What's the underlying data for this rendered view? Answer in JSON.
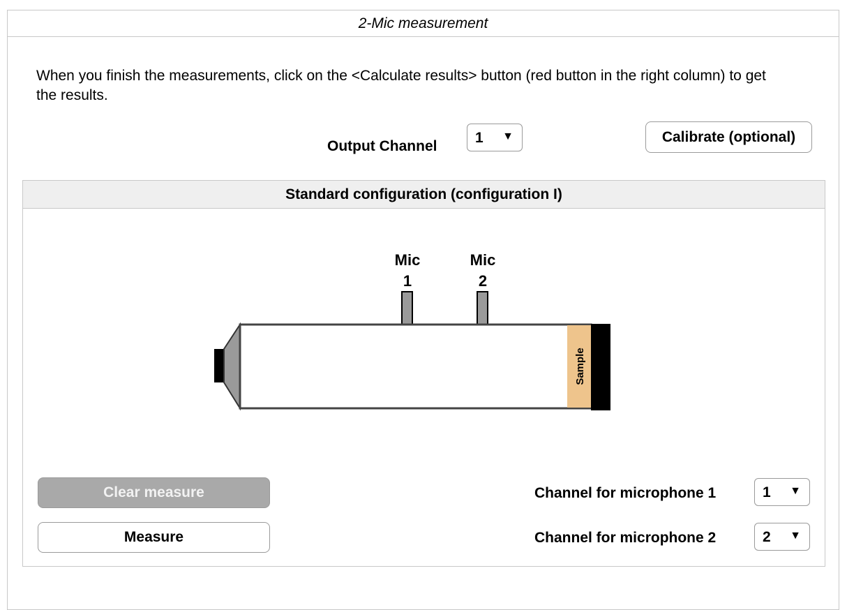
{
  "panel": {
    "title": "2-Mic measurement",
    "instructions": "When you finish the measurements, click on the <Calculate results> button (red button in the right column) to get the results."
  },
  "output_channel": {
    "label": "Output Channel",
    "value": "1"
  },
  "calibrate_button": "Calibrate (optional)",
  "config": {
    "title": "Standard configuration (configuration I)",
    "diagram": {
      "mic1_label_line1": "Mic",
      "mic1_label_line2": "1",
      "mic2_label_line1": "Mic",
      "mic2_label_line2": "2",
      "sample_label": "Sample",
      "colors": {
        "tube_outline": "#444444",
        "mic_fill": "#9a9a9a",
        "sample_fill": "#eec48c",
        "backing_fill": "#000000",
        "speaker_fill": "#9a9a9a"
      }
    }
  },
  "controls": {
    "clear_button": "Clear measure",
    "measure_button": "Measure",
    "mic1_channel_label": "Channel for microphone 1",
    "mic1_channel_value": "1",
    "mic2_channel_label": "Channel for microphone 2",
    "mic2_channel_value": "2"
  },
  "icons": {
    "dropdown_arrow": "▼"
  }
}
